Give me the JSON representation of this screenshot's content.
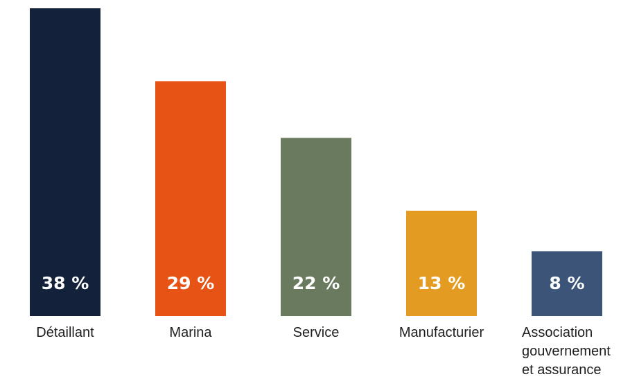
{
  "chart_data": {
    "type": "bar",
    "categories": [
      [
        "Détaillant"
      ],
      [
        "Marina"
      ],
      [
        "Service"
      ],
      [
        "Manufacturier"
      ],
      [
        "Association",
        "gouvernement",
        "et assurance"
      ]
    ],
    "values": [
      38,
      29,
      22,
      13,
      8
    ],
    "value_labels": [
      "38 %",
      "29 %",
      "22 %",
      "13 %",
      "8 %"
    ],
    "colors": [
      "#13213a",
      "#e65314",
      "#6a7a5f",
      "#e49b22",
      "#3b5478"
    ],
    "ylim": [
      0,
      38
    ],
    "grid": false,
    "legend": "none"
  }
}
